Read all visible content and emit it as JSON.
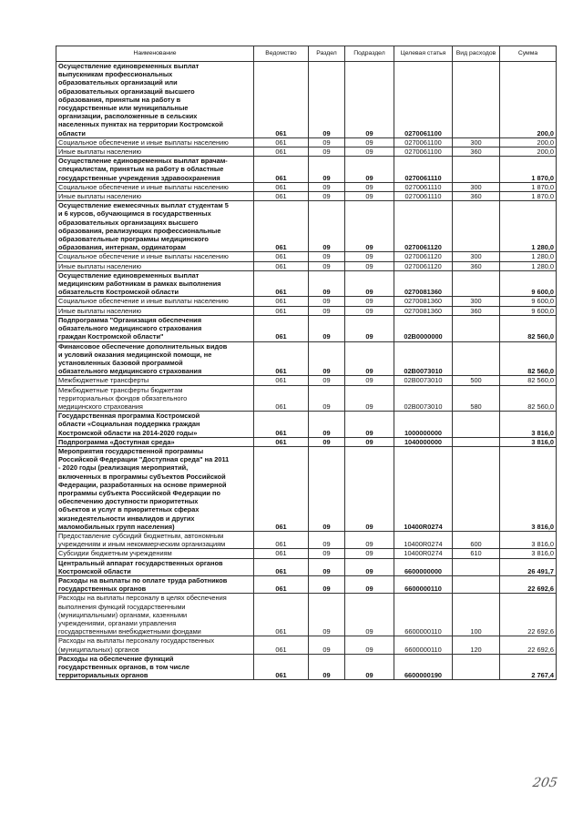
{
  "headers": {
    "name": "Наименование",
    "dept": "Ведомство",
    "section": "Раздел",
    "subsection": "Подраздел",
    "target": "Целевая статья",
    "kind": "Вид расходов",
    "sum": "Сумма"
  },
  "rows": [
    {
      "bold": true,
      "name": "Осуществление единовременных выплат\nвыпускникам профессиональных\nобразовательных организаций или\nобразовательных организаций высшего\nобразования, принятым на работу в\nгосударственные или муниципальные\nорганизации, расположенные в сельских\nнаселенных пунктах на территории Костромской\nобласти",
      "dept": "061",
      "section": "09",
      "subsection": "09",
      "target": "0270061100",
      "kind": "",
      "sum": "200,0"
    },
    {
      "bold": false,
      "name": "Социальное обеспечение и иные выплаты населению",
      "dept": "061",
      "section": "09",
      "subsection": "09",
      "target": "0270061100",
      "kind": "300",
      "sum": "200,0"
    },
    {
      "bold": false,
      "name": "Иные выплаты населению",
      "dept": "061",
      "section": "09",
      "subsection": "09",
      "target": "0270061100",
      "kind": "360",
      "sum": "200,0"
    },
    {
      "bold": true,
      "name": "Осуществление единовременных выплат врачам-\nспециалистам, принятым на работу в областные\nгосударственные учреждения здравоохранения",
      "dept": "061",
      "section": "09",
      "subsection": "09",
      "target": "0270061110",
      "kind": "",
      "sum": "1 870,0"
    },
    {
      "bold": false,
      "name": "Социальное обеспечение и иные выплаты населению",
      "dept": "061",
      "section": "09",
      "subsection": "09",
      "target": "0270061110",
      "kind": "300",
      "sum": "1 870,0"
    },
    {
      "bold": false,
      "name": "Иные выплаты населению",
      "dept": "061",
      "section": "09",
      "subsection": "09",
      "target": "0270061110",
      "kind": "360",
      "sum": "1 870,0"
    },
    {
      "bold": true,
      "name": "Осуществление ежемесячных выплат студентам 5\nи 6 курсов, обучающимся в государственных\nобразовательных организациях высшего\nобразования, реализующих профессиональные\nобразовательные программы медицинского\nобразования, интернам, ординаторам",
      "dept": "061",
      "section": "09",
      "subsection": "09",
      "target": "0270061120",
      "kind": "",
      "sum": "1 280,0"
    },
    {
      "bold": false,
      "name": "Социальное обеспечение и иные выплаты населению",
      "dept": "061",
      "section": "09",
      "subsection": "09",
      "target": "0270061120",
      "kind": "300",
      "sum": "1 280,0"
    },
    {
      "bold": false,
      "name": "Иные выплаты населению",
      "dept": "061",
      "section": "09",
      "subsection": "09",
      "target": "0270061120",
      "kind": "360",
      "sum": "1 280,0"
    },
    {
      "bold": true,
      "name": "Осуществление единовременных выплат\nмедицинским работникам в рамках выполнения\nобязательств Костромской области",
      "dept": "061",
      "section": "09",
      "subsection": "09",
      "target": "0270081360",
      "kind": "",
      "sum": "9 600,0"
    },
    {
      "bold": false,
      "name": "Социальное обеспечение и иные выплаты населению",
      "dept": "061",
      "section": "09",
      "subsection": "09",
      "target": "0270081360",
      "kind": "300",
      "sum": "9 600,0"
    },
    {
      "bold": false,
      "name": "Иные выплаты населению",
      "dept": "061",
      "section": "09",
      "subsection": "09",
      "target": "0270081360",
      "kind": "360",
      "sum": "9 600,0"
    },
    {
      "bold": true,
      "name": "Подпрограмма \"Организация обеспечения\nобязательного медицинского страхования\nграждан Костромской области\"",
      "dept": "061",
      "section": "09",
      "subsection": "09",
      "target": "02В0000000",
      "kind": "",
      "sum": "82 560,0"
    },
    {
      "bold": true,
      "name": "Финансовое обеспечение дополнительных видов\nи условий оказания медицинской помощи, не\nустановленных базовой программой\nобязательного медицинского страхования",
      "dept": "061",
      "section": "09",
      "subsection": "09",
      "target": "02В0073010",
      "kind": "",
      "sum": "82 560,0"
    },
    {
      "bold": false,
      "name": "Межбюджетные трансферты",
      "dept": "061",
      "section": "09",
      "subsection": "09",
      "target": "02В0073010",
      "kind": "500",
      "sum": "82 560,0"
    },
    {
      "bold": false,
      "name": "Межбюджетные трансферты бюджетам\nтерриториальных фондов обязательного\nмедицинского страхования",
      "dept": "061",
      "section": "09",
      "subsection": "09",
      "target": "02В0073010",
      "kind": "580",
      "sum": "82 560,0"
    },
    {
      "bold": true,
      "name": "Государственная программа Костромской\nобласти «Социальная поддержка граждан\nКостромской области на 2014-2020 годы»",
      "dept": "061",
      "section": "09",
      "subsection": "09",
      "target": "1000000000",
      "kind": "",
      "sum": "3 816,0"
    },
    {
      "bold": true,
      "name": "Подпрограмма «Доступная среда»",
      "dept": "061",
      "section": "09",
      "subsection": "09",
      "target": "1040000000",
      "kind": "",
      "sum": "3 816,0"
    },
    {
      "bold": true,
      "name": "Мероприятия государственной программы\nРоссийской Федерации \"Доступная среда\" на 2011\n- 2020 годы (реализация мероприятий,\nвключенных в программы субъектов Российской\nФедерации, разработанных на основе примерной\nпрограммы субъекта Российской Федерации по\nобеспечению доступности приоритетных\nобъектов и услуг в приоритетных сферах\nжизнедеятельности инвалидов и других\nмаломобильных групп населения)",
      "dept": "061",
      "section": "09",
      "subsection": "09",
      "target": "10400R0274",
      "kind": "",
      "sum": "3 816,0"
    },
    {
      "bold": false,
      "name": "Предоставление субсидий бюджетным, автономным\nучреждениям и иным некоммерческим организациям",
      "dept": "061",
      "section": "09",
      "subsection": "09",
      "target": "10400R0274",
      "kind": "600",
      "sum": "3 816,0"
    },
    {
      "bold": false,
      "name": "Субсидии бюджетным учреждениям",
      "dept": "061",
      "section": "09",
      "subsection": "09",
      "target": "10400R0274",
      "kind": "610",
      "sum": "3 816,0"
    },
    {
      "bold": true,
      "name": "Центральный аппарат государственных органов\nКостромской области",
      "dept": "061",
      "section": "09",
      "subsection": "09",
      "target": "6600000000",
      "kind": "",
      "sum": "26 491,7"
    },
    {
      "bold": true,
      "name": "Расходы на выплаты по оплате труда работников\nгосударственных органов",
      "dept": "061",
      "section": "09",
      "subsection": "09",
      "target": "6600000110",
      "kind": "",
      "sum": "22 692,6"
    },
    {
      "bold": false,
      "name": "Расходы на выплаты персоналу в целях обеспечения\nвыполнения функций государственными\n(муниципальными) органами, казенными\nучреждениями, органами управления\nгосударственными внебюджетными фондами",
      "dept": "061",
      "section": "09",
      "subsection": "09",
      "target": "6600000110",
      "kind": "100",
      "sum": "22 692,6"
    },
    {
      "bold": false,
      "name": "Расходы на выплаты персоналу государственных\n(муниципальных) органов",
      "dept": "061",
      "section": "09",
      "subsection": "09",
      "target": "6600000110",
      "kind": "120",
      "sum": "22 692,6"
    },
    {
      "bold": true,
      "name": "Расходы на обеспечение функций\nгосударственных органов, в том числе\nтерриториальных органов",
      "dept": "061",
      "section": "09",
      "subsection": "09",
      "target": "6600000190",
      "kind": "",
      "sum": "2 767,4"
    }
  ],
  "page_number": "205"
}
